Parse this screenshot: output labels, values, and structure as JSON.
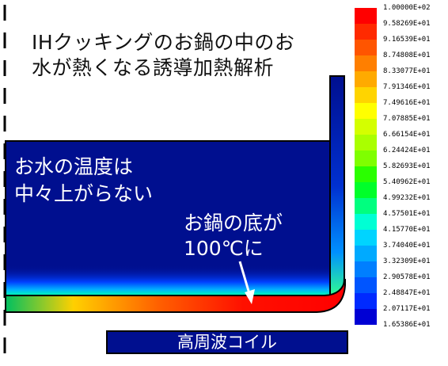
{
  "title": {
    "line1": "IHクッキングのお鍋の中のお",
    "line2": "水が熱くなる誘導加熱解析"
  },
  "annotations": {
    "water_line1": "お水の温度は",
    "water_line2": "中々上がらない",
    "bottom_line1": "お鍋の底が",
    "bottom_line2": "100℃に"
  },
  "coil": {
    "label": "高周波コイル"
  },
  "legend": {
    "labels": [
      "1.00000E+02",
      "9.58269E+01",
      "9.16539E+01",
      "8.74808E+01",
      "8.33077E+01",
      "7.91346E+01",
      "7.49616E+01",
      "7.07885E+01",
      "6.66154E+01",
      "6.24424E+01",
      "5.82693E+01",
      "5.40962E+01",
      "4.99232E+01",
      "4.57501E+01",
      "4.15770E+01",
      "3.74040E+01",
      "3.32309E+01",
      "2.90578E+01",
      "2.48847E+01",
      "2.07117E+01",
      "1.65386E+01"
    ],
    "colors": [
      "#ff0000",
      "#ff2a00",
      "#ff5500",
      "#ff7f00",
      "#ffaa00",
      "#ffd400",
      "#ffff00",
      "#d4ff00",
      "#aaff00",
      "#7fff00",
      "#2aff00",
      "#00ff2a",
      "#00ff7f",
      "#00ffd4",
      "#00d4ff",
      "#00aaff",
      "#007fff",
      "#0055ff",
      "#002aff",
      "#0000d4"
    ]
  }
}
